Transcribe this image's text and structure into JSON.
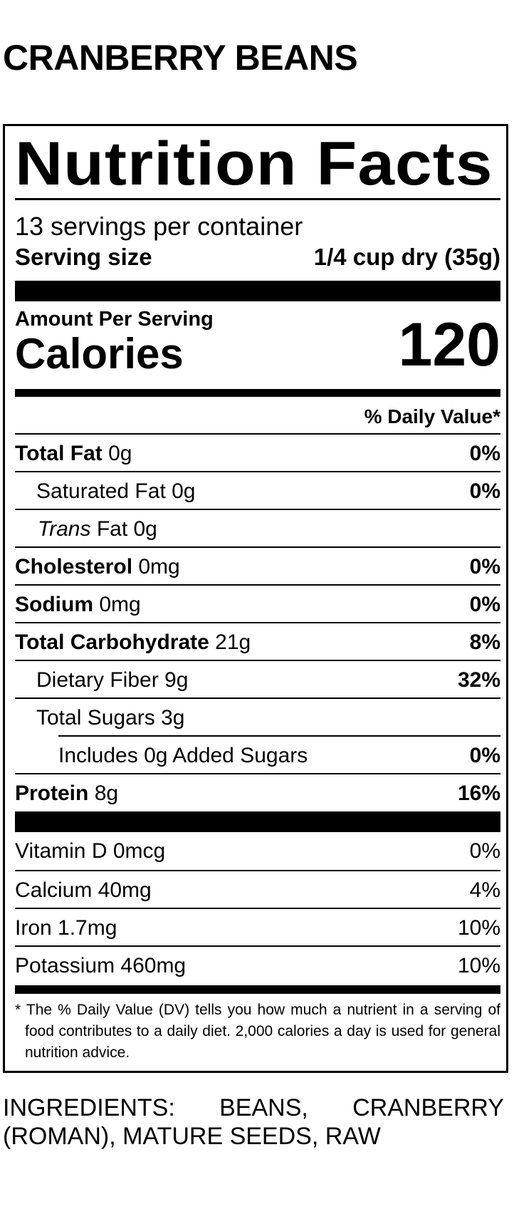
{
  "product_name": "CRANBERRY BEANS",
  "label": {
    "heading": "Nutrition Facts",
    "servings_per_container": "13 servings per container",
    "serving_size_label": "Serving size",
    "serving_size_value": "1/4 cup dry (35g)",
    "amount_per_serving": "Amount Per Serving",
    "calories_label": "Calories",
    "calories_value": "120",
    "daily_value_header": "% Daily Value*",
    "nutrients": [
      {
        "name": "Total Fat",
        "amount": "0g",
        "dv": "0%"
      },
      {
        "name": "Saturated Fat 0g",
        "dv": "0%"
      },
      {
        "name_italic": "Trans",
        "name": "Fat 0g",
        "dv": ""
      },
      {
        "name": "Cholesterol",
        "amount": "0mg",
        "dv": "0%"
      },
      {
        "name": "Sodium",
        "amount": "0mg",
        "dv": "0%"
      },
      {
        "name": "Total Carbohydrate",
        "amount": "21g",
        "dv": "8%"
      },
      {
        "name": "Dietary Fiber 9g",
        "dv": "32%"
      },
      {
        "name": "Total Sugars 3g",
        "dv": ""
      },
      {
        "name": "Includes 0g Added Sugars",
        "dv": "0%"
      },
      {
        "name": "Protein",
        "amount": "8g",
        "dv": "16%"
      }
    ],
    "vitamins": [
      {
        "name": "Vitamin D 0mcg",
        "dv": "0%"
      },
      {
        "name": "Calcium 40mg",
        "dv": "4%"
      },
      {
        "name": "Iron 1.7mg",
        "dv": "10%"
      },
      {
        "name": "Potassium 460mg",
        "dv": "10%"
      }
    ],
    "footnote": "* The % Daily Value (DV) tells you how much a nutrient in a serving of food contributes to a daily diet. 2,000 calories a day is used for general nutrition advice."
  },
  "ingredients": "INGREDIENTS: BEANS, CRANBERRY (ROMAN), MATURE SEEDS, RAW"
}
